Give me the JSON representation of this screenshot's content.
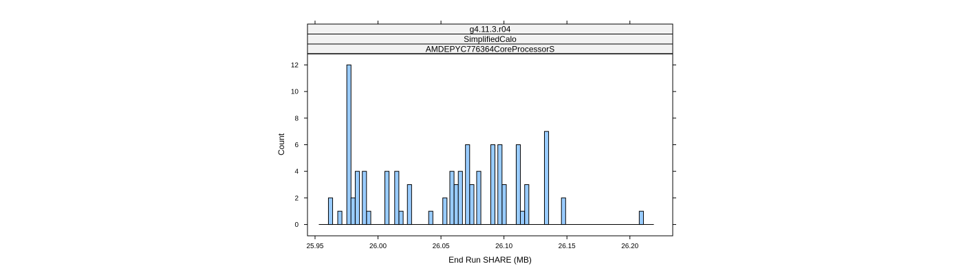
{
  "chart_data": {
    "type": "bar",
    "strips": [
      "g4.11.3.r04",
      "SimplifiedCalo",
      "AMDEPYC776364CoreProcessorS"
    ],
    "xlabel": "End Run SHARE (MB)",
    "ylabel": "Count",
    "xlim": [
      25.944,
      26.234
    ],
    "ylim": [
      -0.85,
      12.85
    ],
    "xticks": [
      25.95,
      26.0,
      26.05,
      26.1,
      26.15,
      26.2
    ],
    "xtick_labels": [
      "25.95",
      "26.00",
      "26.05",
      "26.10",
      "26.15",
      "26.20"
    ],
    "yticks": [
      0,
      2,
      4,
      6,
      8,
      10,
      12
    ],
    "ytick_labels": [
      "0",
      "2",
      "4",
      "6",
      "8",
      "10",
      "12"
    ],
    "range": [
      25.953,
      26.219
    ],
    "bin_width": 0.00333,
    "bars": [
      {
        "x": 25.9623,
        "count": 2
      },
      {
        "x": 25.9697,
        "count": 1
      },
      {
        "x": 25.9769,
        "count": 12
      },
      {
        "x": 25.9802,
        "count": 2
      },
      {
        "x": 25.9836,
        "count": 4
      },
      {
        "x": 25.9892,
        "count": 4
      },
      {
        "x": 25.9926,
        "count": 1
      },
      {
        "x": 26.0071,
        "count": 4
      },
      {
        "x": 26.0149,
        "count": 4
      },
      {
        "x": 26.0183,
        "count": 1
      },
      {
        "x": 26.025,
        "count": 3
      },
      {
        "x": 26.0419,
        "count": 1
      },
      {
        "x": 26.0531,
        "count": 2
      },
      {
        "x": 26.0587,
        "count": 4
      },
      {
        "x": 26.0621,
        "count": 3
      },
      {
        "x": 26.0654,
        "count": 4
      },
      {
        "x": 26.0711,
        "count": 6
      },
      {
        "x": 26.0745,
        "count": 3
      },
      {
        "x": 26.08,
        "count": 4
      },
      {
        "x": 26.0912,
        "count": 6
      },
      {
        "x": 26.0968,
        "count": 6
      },
      {
        "x": 26.1002,
        "count": 3
      },
      {
        "x": 26.1114,
        "count": 6
      },
      {
        "x": 26.1147,
        "count": 1
      },
      {
        "x": 26.1181,
        "count": 3
      },
      {
        "x": 26.1338,
        "count": 7
      },
      {
        "x": 26.1473,
        "count": 2
      },
      {
        "x": 26.2091,
        "count": 1
      }
    ],
    "bar_fill": "#99ccff",
    "bar_stroke": "#000000",
    "grid": false,
    "legend": "none"
  }
}
